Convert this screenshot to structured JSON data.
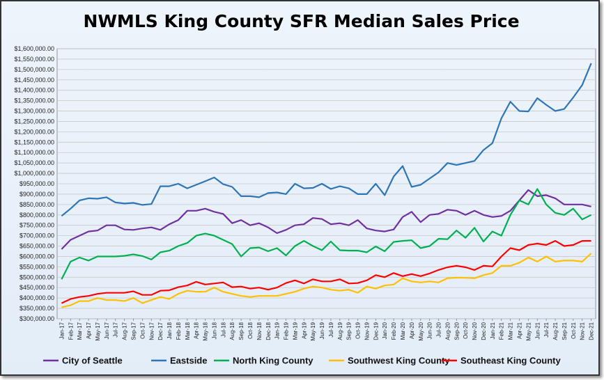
{
  "chart_data": {
    "type": "line",
    "title": "NWMLS King County SFR Median Sales Price",
    "xlabel": "",
    "ylabel": "",
    "ylim": [
      300000,
      1600000
    ],
    "y_step": 50000,
    "grid": true,
    "legend_position": "bottom",
    "x": [
      "Jan-17",
      "Feb-17",
      "Mar-17",
      "Apr-17",
      "May-17",
      "Jun-17",
      "Jul-17",
      "Aug-17",
      "Sep-17",
      "Oct-17",
      "Nov-17",
      "Dec-17",
      "Jan-18",
      "Feb-18",
      "Mar-18",
      "Apr-18",
      "May-18",
      "Jun-18",
      "Jul-18",
      "Aug-18",
      "Sep-18",
      "Oct-18",
      "Nov-18",
      "Dec-18",
      "Jan-19",
      "Feb-19",
      "Mar-19",
      "Apr-19",
      "May-19",
      "Jun-19",
      "Jul-19",
      "Aug-19",
      "Sep-19",
      "Oct-19",
      "Nov-19",
      "Dec-19",
      "Jan-20",
      "Feb-20",
      "Mar-20",
      "Apr-20",
      "May-20",
      "Jun-20",
      "Jul-20",
      "Aug-20",
      "Sep-20",
      "Oct-20",
      "Nov-20",
      "Dec-20",
      "Jan-21",
      "Feb-21",
      "Mar-21",
      "Apr-21",
      "May-21",
      "Jun-21",
      "Jul-21",
      "Aug-21",
      "Sep-21",
      "Oct-21",
      "Nov-21",
      "Dec-21"
    ],
    "series": [
      {
        "name": "City of Seattle",
        "color": "#7030a0",
        "values": [
          635000,
          680000,
          700000,
          720000,
          725000,
          750000,
          750000,
          730000,
          728000,
          735000,
          740000,
          728000,
          755000,
          775000,
          820000,
          820000,
          830000,
          815000,
          805000,
          760000,
          775000,
          750000,
          760000,
          740000,
          712000,
          728000,
          750000,
          755000,
          785000,
          780000,
          755000,
          760000,
          750000,
          775000,
          735000,
          725000,
          720000,
          730000,
          790000,
          815000,
          765000,
          800000,
          805000,
          825000,
          820000,
          800000,
          820000,
          800000,
          790000,
          795000,
          820000,
          870000,
          920000,
          890000,
          895000,
          880000,
          850000,
          850000,
          850000,
          840000
        ]
      },
      {
        "name": "Eastside",
        "color": "#2e75b6",
        "values": [
          795000,
          830000,
          870000,
          880000,
          878000,
          885000,
          860000,
          855000,
          858000,
          848000,
          852000,
          938000,
          938000,
          950000,
          928000,
          945000,
          962000,
          980000,
          948000,
          935000,
          890000,
          890000,
          885000,
          905000,
          908000,
          900000,
          950000,
          928000,
          930000,
          950000,
          925000,
          938000,
          928000,
          900000,
          900000,
          950000,
          895000,
          985000,
          1035000,
          935000,
          945000,
          975000,
          1005000,
          1050000,
          1040000,
          1050000,
          1060000,
          1112000,
          1145000,
          1265000,
          1345000,
          1300000,
          1298000,
          1362000,
          1330000,
          1300000,
          1310000,
          1365000,
          1425000,
          1530000
        ]
      },
      {
        "name": "North King County",
        "color": "#00b050",
        "values": [
          490000,
          575000,
          595000,
          580000,
          600000,
          600000,
          600000,
          603000,
          610000,
          602000,
          585000,
          620000,
          628000,
          650000,
          665000,
          700000,
          710000,
          700000,
          680000,
          660000,
          600000,
          640000,
          643000,
          625000,
          640000,
          605000,
          650000,
          675000,
          650000,
          630000,
          672000,
          630000,
          628000,
          628000,
          620000,
          648000,
          625000,
          670000,
          675000,
          678000,
          640000,
          650000,
          685000,
          683000,
          725000,
          690000,
          738000,
          672000,
          720000,
          700000,
          800000,
          870000,
          850000,
          925000,
          850000,
          810000,
          800000,
          830000,
          778000,
          800000
        ]
      },
      {
        "name": "Southwest King County",
        "color": "#ffc000",
        "values": [
          355000,
          365000,
          385000,
          385000,
          400000,
          390000,
          390000,
          385000,
          400000,
          375000,
          390000,
          405000,
          395000,
          420000,
          435000,
          430000,
          430000,
          450000,
          430000,
          420000,
          410000,
          405000,
          410000,
          410000,
          410000,
          420000,
          430000,
          445000,
          455000,
          450000,
          440000,
          435000,
          440000,
          425000,
          455000,
          445000,
          460000,
          465000,
          495000,
          480000,
          475000,
          480000,
          475000,
          495000,
          498000,
          497000,
          495000,
          510000,
          520000,
          555000,
          555000,
          570000,
          595000,
          575000,
          600000,
          575000,
          580000,
          580000,
          575000,
          615000
        ]
      },
      {
        "name": "Southeast King County",
        "color": "#ff0000",
        "values": [
          375000,
          395000,
          405000,
          410000,
          420000,
          425000,
          425000,
          425000,
          432000,
          415000,
          415000,
          435000,
          437000,
          452000,
          460000,
          478000,
          465000,
          470000,
          475000,
          452000,
          455000,
          445000,
          450000,
          440000,
          450000,
          472000,
          485000,
          470000,
          490000,
          480000,
          480000,
          490000,
          470000,
          472000,
          485000,
          510000,
          500000,
          520000,
          505000,
          515000,
          505000,
          518000,
          535000,
          548000,
          555000,
          548000,
          535000,
          555000,
          552000,
          600000,
          640000,
          630000,
          655000,
          662000,
          655000,
          675000,
          650000,
          655000,
          675000,
          675000
        ]
      }
    ]
  }
}
